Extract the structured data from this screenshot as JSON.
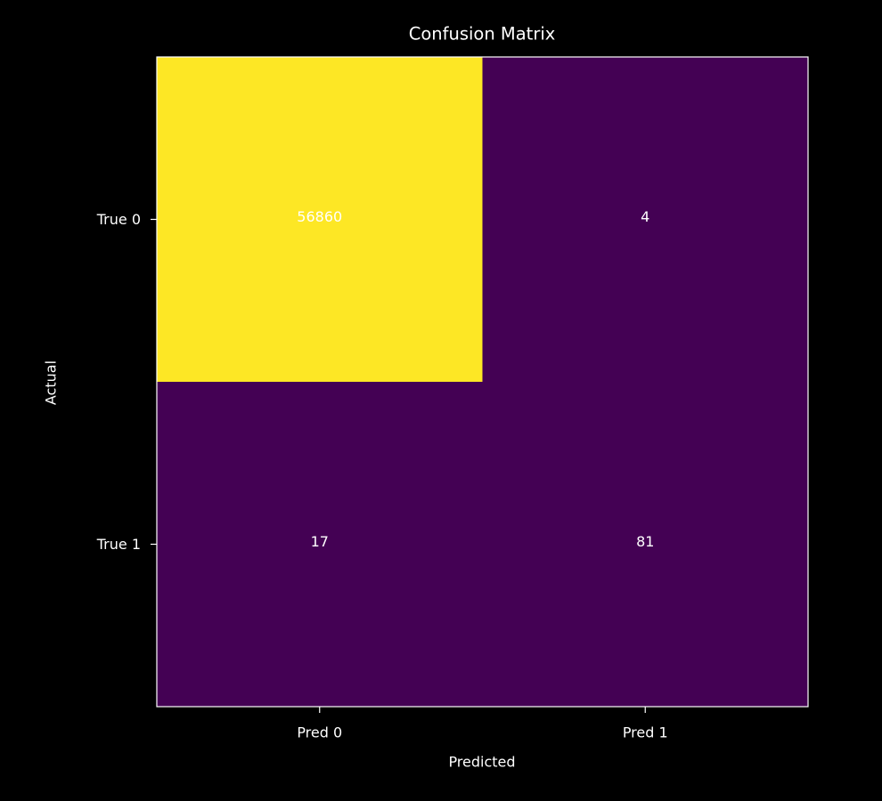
{
  "chart_data": {
    "type": "heatmap",
    "title": "Confusion Matrix",
    "x_label": "Predicted",
    "y_label": "Actual",
    "x_categories": [
      "Pred 0",
      "Pred 1"
    ],
    "y_categories": [
      "True 0",
      "True 1"
    ],
    "values": [
      [
        56860,
        4
      ],
      [
        17,
        81
      ]
    ],
    "colormap": [
      "#440154",
      "#fde725"
    ]
  }
}
